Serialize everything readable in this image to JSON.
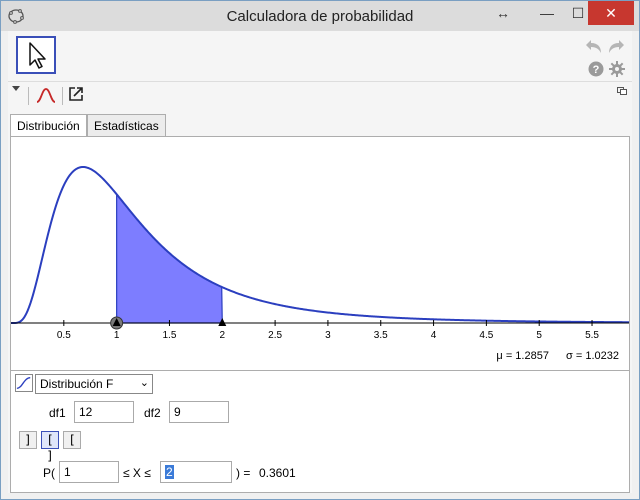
{
  "window": {
    "title": "Calculadora de probabilidad",
    "resize_glyph": "↔",
    "min_glyph": "—",
    "max_glyph": "☐",
    "close_glyph": "✕"
  },
  "toolbar": {
    "mode_icon": "pointer-arrow-icon",
    "undo_icon": "undo-icon",
    "redo_icon": "redo-icon",
    "help_icon": "help-icon",
    "settings_icon": "gear-icon",
    "menu_toggle_icon": "triangle-down-icon",
    "distribution_icon": "bell-curve-icon",
    "export_icon": "export-icon",
    "dock_icon": "dock-icon"
  },
  "tabs": [
    {
      "label": "Distribución",
      "active": true
    },
    {
      "label": "Estadísticas",
      "active": false
    }
  ],
  "chart_data": {
    "type": "area",
    "distribution": "F",
    "df1": 12,
    "df2": 9,
    "xlim": [
      0,
      5.85
    ],
    "x_ticks": [
      "0.5",
      "1",
      "1.5",
      "2",
      "2.5",
      "3",
      "3.5",
      "4",
      "4.5",
      "5",
      "5.5"
    ],
    "shaded_interval": [
      1,
      2
    ],
    "colors": {
      "curve": "#2b3fbf",
      "fill": "#7d7dff",
      "axis": "#000000"
    }
  },
  "stats": {
    "mean": "μ = 1.2857",
    "sd": "σ = 1.0232"
  },
  "controls": {
    "distribution_label": "Distribución F",
    "df1_label": "df1",
    "df1_value": "12",
    "df2_label": "df2",
    "df2_value": "9",
    "interval_buttons": [
      {
        "glyph": "]",
        "name": "left-sided-button"
      },
      {
        "glyph": "[ ]",
        "name": "interval-button",
        "active": true
      },
      {
        "glyph": "[",
        "name": "right-sided-button"
      }
    ],
    "prob_prefix": "P(",
    "lower_value": "1",
    "middle_text": "≤ X ≤",
    "upper_value": "2",
    "equals_text": ") =",
    "result": "0.3601"
  }
}
